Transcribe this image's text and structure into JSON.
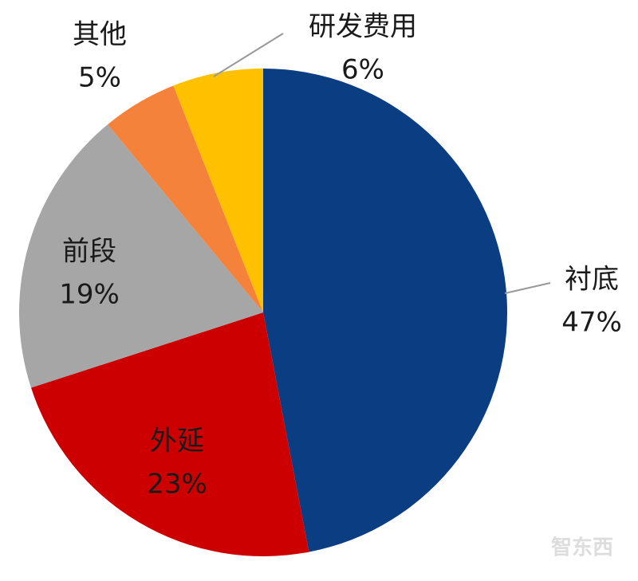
{
  "chart_data": {
    "type": "pie",
    "categories": [
      "衬底",
      "外延",
      "前段",
      "其他",
      "研发费用"
    ],
    "values": [
      47,
      23,
      19,
      5,
      6
    ],
    "value_labels": [
      "47%",
      "23%",
      "19%",
      "5%",
      "6%"
    ],
    "colors": [
      "#0b3d82",
      "#cc0000",
      "#a6a6a6",
      "#f5823a",
      "#ffc000"
    ]
  },
  "watermark": "智东西"
}
